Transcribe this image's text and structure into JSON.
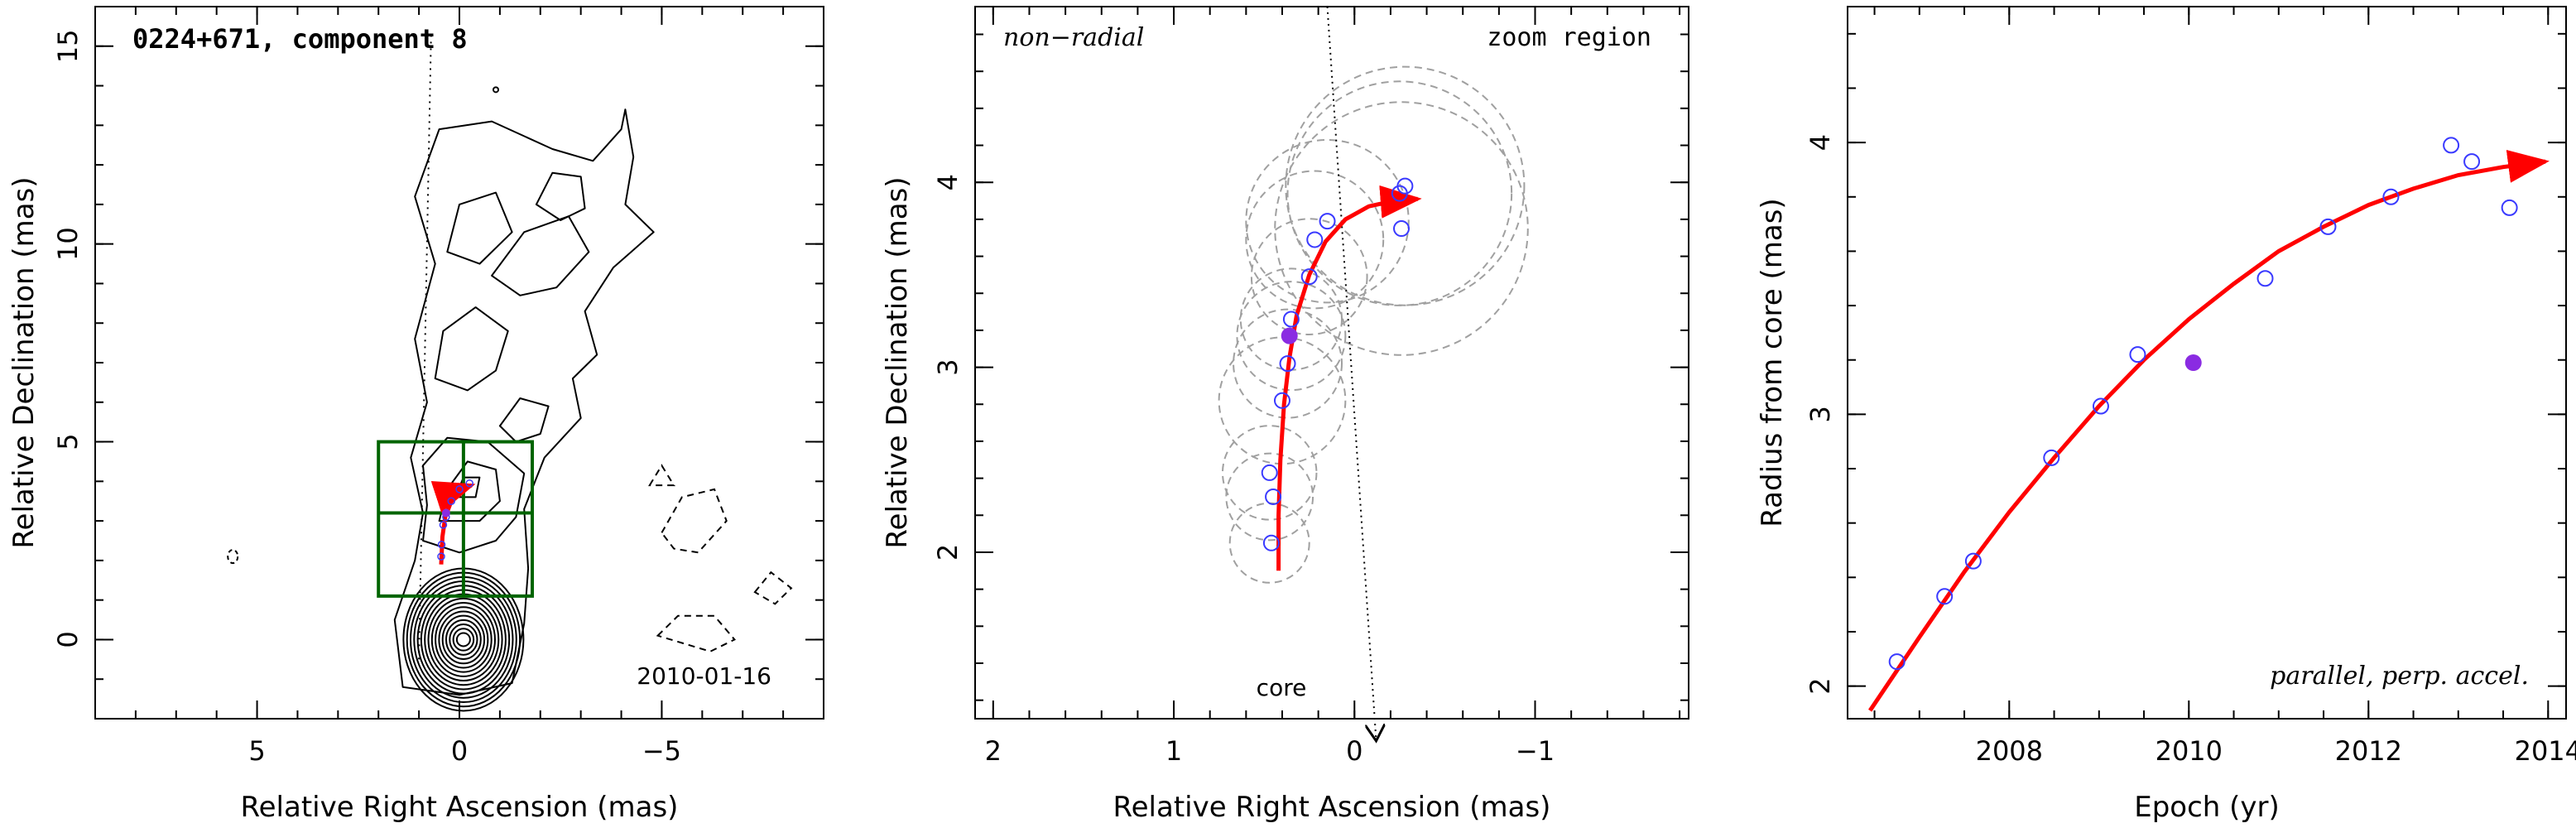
{
  "chart_data": [
    {
      "type": "scatter",
      "panel": "contour",
      "title": "0224+671, component 8",
      "xlabel": "Relative Right Ascension (mas)",
      "ylabel": "Relative Declination (mas)",
      "xlim": [
        9,
        -9
      ],
      "ylim": [
        -2,
        16
      ],
      "xticks": [
        5,
        0,
        -5
      ],
      "yticks": [
        0,
        5,
        10,
        15
      ],
      "xtick_labels": [
        "5",
        "0",
        "−5"
      ],
      "ytick_labels": [
        "0",
        "5",
        "10",
        "15"
      ],
      "annotation": "2010-01-16",
      "zoom_box": {
        "x": [
          2,
          -1.8
        ],
        "y": [
          1.1,
          5
        ],
        "divider_x": -0.1,
        "divider_y": 3.2
      },
      "track": [
        [
          0.45,
          1.9
        ],
        [
          0.42,
          2.6
        ],
        [
          0.35,
          3.1
        ],
        [
          0.2,
          3.5
        ],
        [
          0.0,
          3.8
        ],
        [
          -0.3,
          3.9
        ]
      ],
      "points": [
        [
          0.45,
          2.1
        ],
        [
          0.44,
          2.4
        ],
        [
          0.4,
          2.9
        ],
        [
          0.33,
          3.1
        ],
        [
          0.2,
          3.5
        ],
        [
          0.0,
          3.8
        ],
        [
          -0.25,
          3.95
        ]
      ],
      "filled_point": [
        0.33,
        3.2
      ],
      "direction_line": [
        [
          1,
          -0.5
        ],
        [
          0.7,
          15.3
        ]
      ]
    },
    {
      "type": "scatter",
      "panel": "zoom",
      "xlabel": "Relative Right Ascension (mas)",
      "ylabel": "Relative Declination (mas)",
      "xlim": [
        2.1,
        -1.85
      ],
      "ylim": [
        1.1,
        4.95
      ],
      "xticks": [
        2,
        1,
        0,
        -1
      ],
      "yticks": [
        2,
        3,
        4
      ],
      "xtick_labels": [
        "2",
        "1",
        "0",
        "−1"
      ],
      "ytick_labels": [
        "2",
        "3",
        "4"
      ],
      "labels": {
        "top_left": "non−radial",
        "top_right": "zoom region",
        "bottom": "core"
      },
      "points": [
        {
          "x": 0.46,
          "y": 2.05
        },
        {
          "x": 0.45,
          "y": 2.3
        },
        {
          "x": 0.47,
          "y": 2.43
        },
        {
          "x": 0.4,
          "y": 2.82
        },
        {
          "x": 0.37,
          "y": 3.02
        },
        {
          "x": 0.35,
          "y": 3.26
        },
        {
          "x": 0.25,
          "y": 3.49
        },
        {
          "x": 0.22,
          "y": 3.69
        },
        {
          "x": 0.15,
          "y": 3.79
        },
        {
          "x": -0.25,
          "y": 3.94
        },
        {
          "x": -0.28,
          "y": 3.98
        },
        {
          "x": -0.26,
          "y": 3.75
        }
      ],
      "filled_point": {
        "x": 0.36,
        "y": 3.17
      },
      "circles": [
        {
          "x": 0.47,
          "y": 2.05,
          "r": 0.22
        },
        {
          "x": 0.47,
          "y": 2.3,
          "r": 0.24
        },
        {
          "x": 0.47,
          "y": 2.43,
          "r": 0.26
        },
        {
          "x": 0.4,
          "y": 2.82,
          "r": 0.35
        },
        {
          "x": 0.37,
          "y": 3.02,
          "r": 0.3
        },
        {
          "x": 0.35,
          "y": 3.17,
          "r": 0.3
        },
        {
          "x": 0.35,
          "y": 3.26,
          "r": 0.28
        },
        {
          "x": 0.25,
          "y": 3.49,
          "r": 0.32
        },
        {
          "x": 0.22,
          "y": 3.69,
          "r": 0.38
        },
        {
          "x": 0.15,
          "y": 3.79,
          "r": 0.45
        },
        {
          "x": -0.25,
          "y": 3.94,
          "r": 0.62
        },
        {
          "x": -0.28,
          "y": 3.98,
          "r": 0.66
        },
        {
          "x": -0.26,
          "y": 3.75,
          "r": 0.7
        }
      ],
      "track": [
        [
          0.42,
          1.9
        ],
        [
          0.42,
          2.2
        ],
        [
          0.41,
          2.5
        ],
        [
          0.39,
          2.8
        ],
        [
          0.36,
          3.05
        ],
        [
          0.32,
          3.28
        ],
        [
          0.25,
          3.5
        ],
        [
          0.16,
          3.68
        ],
        [
          0.05,
          3.8
        ],
        [
          -0.08,
          3.87
        ],
        [
          -0.22,
          3.9
        ],
        [
          -0.35,
          3.91
        ]
      ],
      "direction_line": [
        [
          0.15,
          4.95
        ],
        [
          -0.12,
          0.98
        ]
      ]
    },
    {
      "type": "scatter",
      "panel": "radius",
      "xlabel": "Epoch (yr)",
      "ylabel": "Radius from core (mas)",
      "xlim": [
        2006.2,
        2014.2
      ],
      "ylim": [
        1.88,
        4.5
      ],
      "xticks": [
        2008,
        2010,
        2012,
        2014
      ],
      "yticks": [
        2,
        3,
        4
      ],
      "xtick_labels": [
        "2008",
        "2010",
        "2012",
        "2014"
      ],
      "ytick_labels": [
        "2",
        "3",
        "4"
      ],
      "annotation": "parallel, perp. accel.",
      "points": [
        {
          "x": 2006.75,
          "y": 2.09
        },
        {
          "x": 2007.28,
          "y": 2.33
        },
        {
          "x": 2007.6,
          "y": 2.46
        },
        {
          "x": 2008.47,
          "y": 2.84
        },
        {
          "x": 2009.02,
          "y": 3.03
        },
        {
          "x": 2009.43,
          "y": 3.22
        },
        {
          "x": 2010.85,
          "y": 3.5
        },
        {
          "x": 2011.55,
          "y": 3.69
        },
        {
          "x": 2012.25,
          "y": 3.8
        },
        {
          "x": 2012.92,
          "y": 3.99
        },
        {
          "x": 2013.15,
          "y": 3.93
        },
        {
          "x": 2013.57,
          "y": 3.76
        }
      ],
      "filled_point": {
        "x": 2010.05,
        "y": 3.19
      },
      "fit_curve": [
        [
          2006.45,
          1.91
        ],
        [
          2007,
          2.18
        ],
        [
          2007.5,
          2.42
        ],
        [
          2008,
          2.64
        ],
        [
          2008.5,
          2.84
        ],
        [
          2009,
          3.03
        ],
        [
          2009.5,
          3.2
        ],
        [
          2010,
          3.35
        ],
        [
          2010.5,
          3.48
        ],
        [
          2011,
          3.6
        ],
        [
          2011.5,
          3.69
        ],
        [
          2012,
          3.77
        ],
        [
          2012.5,
          3.83
        ],
        [
          2013,
          3.88
        ],
        [
          2013.5,
          3.91
        ],
        [
          2013.97,
          3.93
        ]
      ]
    }
  ]
}
